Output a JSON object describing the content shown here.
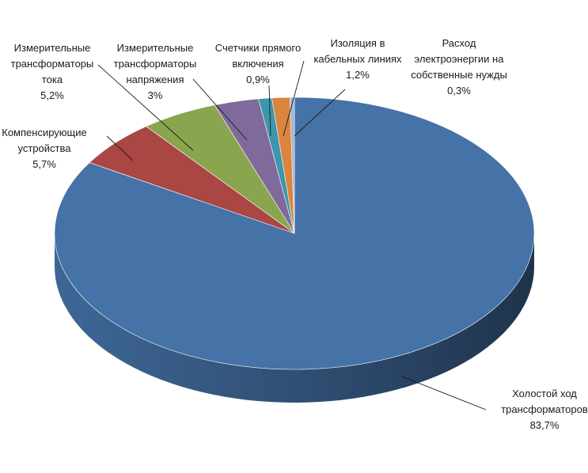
{
  "chart_data": {
    "type": "pie",
    "style": "3d-exploded-none",
    "categories": [
      "Холостой ход трансформаторов",
      "Компенсирующие устройства",
      "Измерительные трансформаторы тока",
      "Измерительные трансформаторы напряжения",
      "Счетчики прямого включения",
      "Изоляция в кабельных линиях",
      "Расход электроэнергии на собственные нужды"
    ],
    "values": [
      83.7,
      5.7,
      5.2,
      3.0,
      0.9,
      1.2,
      0.3
    ],
    "value_labels": [
      "83,7%",
      "5,7%",
      "5,2%",
      "3%",
      "0,9%",
      "1,2%",
      "0,3%"
    ],
    "label_lines": [
      [
        "Холостой ход",
        "трансформаторов"
      ],
      [
        "Компенсирующие",
        "устройства"
      ],
      [
        "Измерительные",
        "трансформаторы",
        "тока"
      ],
      [
        "Измерительные",
        "трансформаторы",
        "напряжения"
      ],
      [
        "Счетчики прямого",
        "включения"
      ],
      [
        "Изоляция в",
        "кабельных линиях"
      ],
      [
        "Расход",
        "электроэнергии на",
        "собственные нужды"
      ]
    ],
    "colors": [
      "#4572A7",
      "#AA4643",
      "#89A54E",
      "#80699B",
      "#3D96AE",
      "#DB843D",
      "#A4B4D4"
    ],
    "title": "",
    "legend": "none"
  }
}
